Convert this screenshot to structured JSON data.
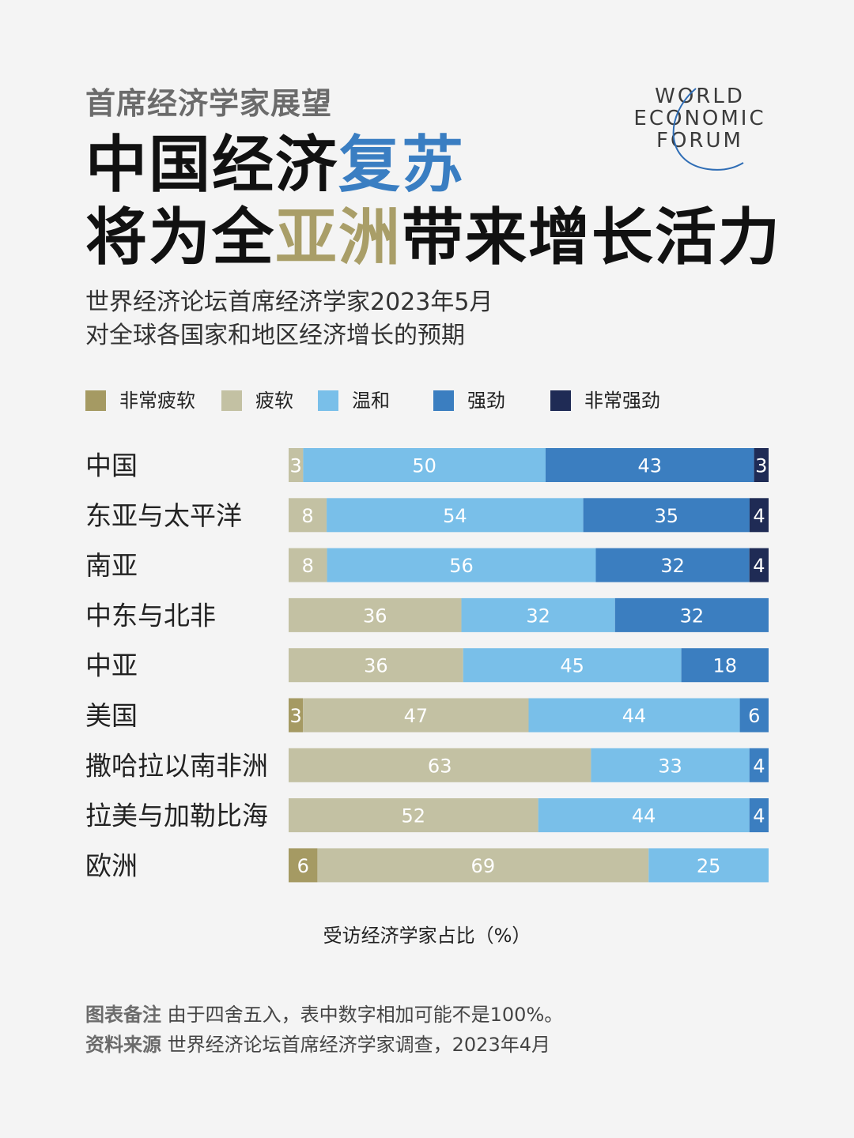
{
  "kicker": "首席经济学家展望",
  "headline": {
    "line1": [
      "中国经济",
      "复苏"
    ],
    "line2": [
      "将为全",
      "亚洲",
      "带来增长活力"
    ]
  },
  "subtitle": [
    "世界经济论坛首席经济学家2023年5月",
    "对全球各国家和地区经济增长的预期"
  ],
  "logo": [
    "WORLD",
    "ECONOMIC",
    "FORUM"
  ],
  "colors": {
    "very_weak": "#a59a63",
    "weak": "#c3c1a3",
    "moderate": "#79bfe9",
    "strong": "#3b7ec0",
    "very_strong": "#1f2b55",
    "blue_text": "#3a7ec2",
    "gold_text": "#a99e68"
  },
  "chart_data": {
    "type": "bar",
    "orientation": "horizontal",
    "stacked": true,
    "categories": [
      "中国",
      "东亚与太平洋",
      "南亚",
      "中东与北非",
      "中亚",
      "美国",
      "撒哈拉以南非洲",
      "拉美与加勒比海",
      "欧洲"
    ],
    "series": [
      {
        "name": "非常疲软",
        "values": [
          0,
          0,
          0,
          0,
          0,
          3,
          0,
          0,
          6
        ]
      },
      {
        "name": "疲软",
        "values": [
          3,
          8,
          8,
          36,
          36,
          47,
          63,
          52,
          69
        ]
      },
      {
        "name": "温和",
        "values": [
          50,
          54,
          56,
          32,
          45,
          44,
          33,
          44,
          25
        ]
      },
      {
        "name": "强劲",
        "values": [
          43,
          35,
          32,
          32,
          18,
          6,
          4,
          4,
          0
        ]
      },
      {
        "name": "非常强劲",
        "values": [
          3,
          4,
          4,
          0,
          0,
          0,
          0,
          0,
          0
        ]
      }
    ],
    "xlabel": "受访经济学家占比（%）",
    "xlim": [
      0,
      100
    ],
    "legend_position": "top"
  },
  "notes": [
    {
      "label": "图表备注",
      "text": "由于四舍五入，表中数字相加可能不是100%。"
    },
    {
      "label": "资料来源",
      "text": "世界经济论坛首席经济学家调查，2023年4月"
    }
  ]
}
